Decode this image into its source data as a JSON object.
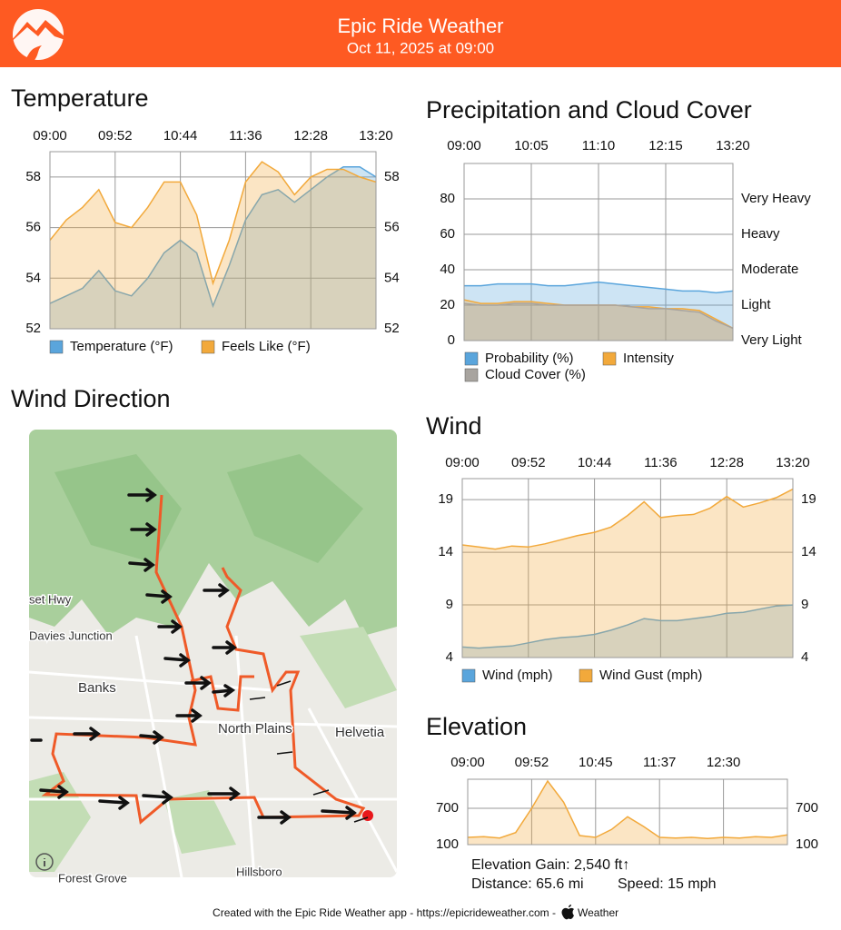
{
  "header": {
    "title": "Epic Ride Weather",
    "subtitle": "Oct 11, 2025 at 09:00"
  },
  "chart_data": [
    {
      "type": "area",
      "title": "Temperature",
      "categories": [
        "09:00",
        null,
        null,
        null,
        "09:52",
        null,
        null,
        null,
        "10:44",
        null,
        null,
        null,
        "11:36",
        null,
        null,
        null,
        "12:28",
        null,
        null,
        null,
        "13:20"
      ],
      "series": [
        {
          "name": "Temperature (°F)",
          "color": "#5aa5dc",
          "values": [
            53.0,
            53.3,
            53.6,
            54.3,
            53.5,
            53.3,
            54.0,
            55.0,
            55.5,
            55.0,
            52.9,
            54.5,
            56.3,
            57.3,
            57.5,
            57.0,
            57.5,
            58.0,
            58.4,
            58.4,
            58.0
          ]
        },
        {
          "name": "Feels Like (°F)",
          "color": "#f2a93b",
          "values": [
            55.5,
            56.3,
            56.8,
            57.5,
            56.2,
            56.0,
            56.8,
            57.8,
            57.8,
            56.5,
            53.8,
            55.5,
            57.8,
            58.6,
            58.2,
            57.3,
            58.0,
            58.3,
            58.3,
            58.0,
            57.8
          ]
        }
      ],
      "ylim": [
        52,
        59
      ],
      "yticks": [
        52,
        54,
        56,
        58
      ],
      "y2lim": [
        52,
        59
      ],
      "y2ticks": [
        52,
        54,
        56,
        58
      ],
      "grid": true
    },
    {
      "type": "area",
      "title": "Precipitation and Cloud Cover",
      "categories": [
        "09:00",
        null,
        null,
        null,
        "10:05",
        null,
        null,
        null,
        "11:10",
        null,
        null,
        null,
        "12:15",
        null,
        null,
        null,
        "13:20"
      ],
      "series": [
        {
          "name": "Probability (%)",
          "color": "#5aa5dc",
          "values": [
            31,
            31,
            32,
            32,
            32,
            31,
            31,
            32,
            33,
            32,
            31,
            30,
            29,
            28,
            28,
            27,
            28
          ]
        },
        {
          "name": "Intensity",
          "color": "#f2a93b",
          "values": [
            23,
            21,
            21,
            22,
            22,
            21,
            20,
            20,
            20,
            20,
            19,
            19,
            18,
            18,
            17,
            12,
            7
          ]
        },
        {
          "name": "Cloud Cover (%)",
          "color": "#a8a49f",
          "values": [
            21,
            20,
            20,
            21,
            21,
            20,
            20,
            20,
            20,
            20,
            19,
            18,
            18,
            17,
            16,
            11,
            7
          ]
        }
      ],
      "ylim": [
        0,
        100
      ],
      "yticks": [
        0,
        20,
        40,
        60,
        80
      ],
      "y2lim": [
        0,
        100
      ],
      "y2ticks": [
        {
          "value": 0,
          "label": "Very Light"
        },
        {
          "value": 20,
          "label": "Light"
        },
        {
          "value": 40,
          "label": "Moderate"
        },
        {
          "value": 60,
          "label": "Heavy"
        },
        {
          "value": 80,
          "label": "Very Heavy"
        }
      ],
      "grid": true
    },
    {
      "type": "area",
      "title": "Wind",
      "categories": [
        "09:00",
        null,
        null,
        null,
        "09:52",
        null,
        null,
        null,
        "10:44",
        null,
        null,
        null,
        "11:36",
        null,
        null,
        null,
        "12:28",
        null,
        null,
        null,
        "13:20"
      ],
      "series": [
        {
          "name": "Wind (mph)",
          "color": "#5aa5dc",
          "values": [
            5.0,
            4.9,
            5.0,
            5.1,
            5.4,
            5.7,
            5.9,
            6.0,
            6.2,
            6.6,
            7.1,
            7.7,
            7.5,
            7.5,
            7.7,
            7.9,
            8.2,
            8.3,
            8.6,
            8.9,
            9.0
          ]
        },
        {
          "name": "Wind Gust (mph)",
          "color": "#f2a93b",
          "values": [
            14.7,
            14.5,
            14.3,
            14.6,
            14.5,
            14.8,
            15.2,
            15.6,
            15.9,
            16.4,
            17.5,
            18.8,
            17.3,
            17.5,
            17.6,
            18.2,
            19.3,
            18.3,
            18.7,
            19.2,
            20.0
          ]
        }
      ],
      "ylim": [
        4,
        21
      ],
      "yticks": [
        4,
        9,
        14,
        19
      ],
      "y2lim": [
        4,
        21
      ],
      "y2ticks": [
        4,
        9,
        14,
        19
      ],
      "grid": true
    },
    {
      "type": "area",
      "title": "Elevation",
      "categories": [
        "09:00",
        null,
        null,
        null,
        "09:52",
        null,
        null,
        null,
        "10:45",
        null,
        null,
        null,
        "11:37",
        null,
        null,
        null,
        "12:30",
        null,
        null,
        null,
        null
      ],
      "series": [
        {
          "color": "#f2a93b",
          "values": [
            220,
            230,
            210,
            300,
            700,
            1150,
            800,
            250,
            220,
            350,
            560,
            400,
            220,
            210,
            220,
            200,
            220,
            210,
            230,
            220,
            260
          ]
        }
      ],
      "ylim": [
        100,
        1180
      ],
      "yticks": [
        100,
        700
      ],
      "y2lim": [
        100,
        1180
      ],
      "y2ticks": [
        100,
        700
      ],
      "grid": true
    }
  ],
  "wind_direction": {
    "title": "Wind Direction",
    "labels": [
      "set Hwy",
      "Davies Junction",
      "Banks",
      "North Plains",
      "Helvetia",
      "Hillsboro",
      "Forest Grove"
    ]
  },
  "elevation_stats": {
    "gain": "Elevation Gain: 2,540 ft↑",
    "distance": "Distance: 65.6 mi",
    "speed": "Speed: 15 mph"
  },
  "footer": {
    "credit": "Created with the Epic Ride Weather app - https://epicrideweather.com - ",
    "weather": "Weather"
  }
}
